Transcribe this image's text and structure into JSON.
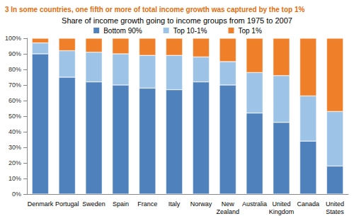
{
  "chart_data": {
    "type": "bar",
    "title": "3 In some countries, one fifth or more of total income growth was captured by the top 1%",
    "subtitle": "Share of income growth going to income groups from 1975 to 2007",
    "categories": [
      "Denmark",
      "Portugal",
      "Sweden",
      "Spain",
      "France",
      "Italy",
      "Norway",
      "New Zealand",
      "Australia",
      "United Kingdom",
      "Canada",
      "United States"
    ],
    "series": [
      {
        "name": "Bottom 90%",
        "color": "#4f81bd",
        "values": [
          90,
          75,
          72,
          70,
          68,
          67,
          72,
          70,
          52,
          46,
          34,
          18
        ]
      },
      {
        "name": "Top 10-1%",
        "color": "#9dc3e6",
        "values": [
          7,
          17,
          19,
          20,
          21,
          22,
          16,
          15,
          26,
          30,
          29,
          35
        ]
      },
      {
        "name": "Top 1%",
        "color": "#f07f2a",
        "values": [
          3,
          8,
          9,
          10,
          11,
          11,
          12,
          15,
          22,
          24,
          37,
          47
        ]
      }
    ],
    "ylim": [
      0,
      100
    ],
    "yticks": [
      {
        "value": 0,
        "label": "0%"
      },
      {
        "value": 10,
        "label": "10%"
      },
      {
        "value": 20,
        "label": "20%"
      },
      {
        "value": 30,
        "label": "30%"
      },
      {
        "value": 40,
        "label": "40%"
      },
      {
        "value": 50,
        "label": "50%"
      },
      {
        "value": 60,
        "label": "60%"
      },
      {
        "value": 70,
        "label": "70%"
      },
      {
        "value": 80,
        "label": "80%"
      },
      {
        "value": 90,
        "label": "90%"
      },
      {
        "value": 100,
        "label": "100%"
      }
    ],
    "stacked": true,
    "legend": "top",
    "grid": false
  }
}
